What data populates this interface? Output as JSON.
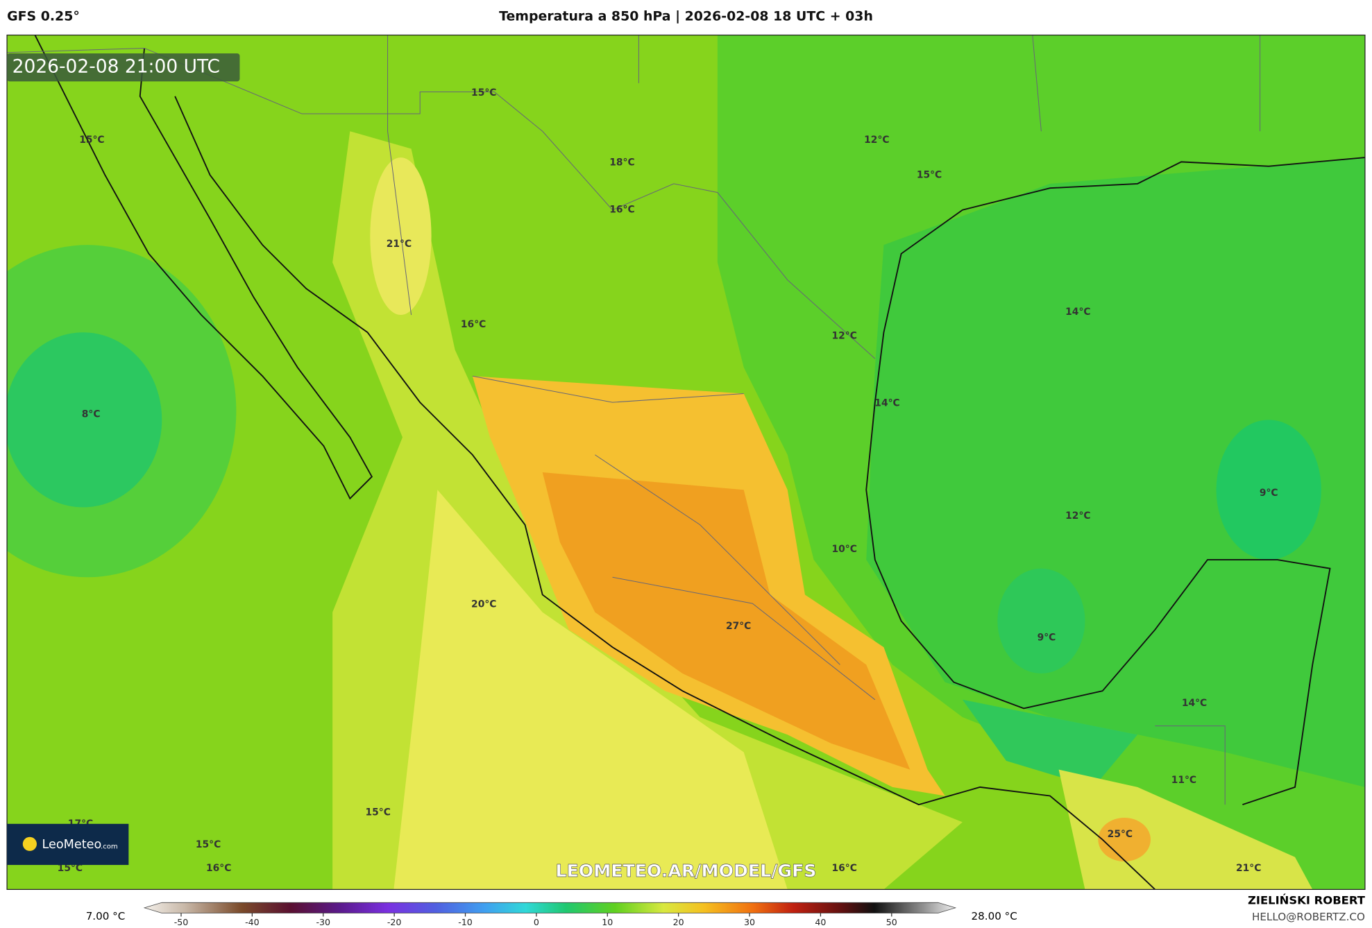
{
  "header": {
    "model": "GFS 0.25°",
    "title": "Temperatura a 850 hPa | 2026-02-08 18 UTC + 03h"
  },
  "map": {
    "timestamp": "2026-02-08 21:00 UTC",
    "watermark": "LEOMETEO.AR/MODEL/GFS",
    "labels": [
      "15°C",
      "15°C",
      "18°C",
      "16°C",
      "12°C",
      "15°C",
      "21°C",
      "16°C",
      "12°C",
      "14°C",
      "8°C",
      "14°C",
      "9°C",
      "12°C",
      "10°C",
      "20°C",
      "27°C",
      "9°C",
      "14°C",
      "11°C",
      "15°C",
      "17°C",
      "15°C",
      "25°C",
      "15°C",
      "16°C",
      "16°C",
      "21°C"
    ],
    "logo": {
      "name": "LeoMeteo",
      "suffix": ".com"
    }
  },
  "colorbar": {
    "min_label": "7.00 °C",
    "max_label": "28.00 °C",
    "ticks": [
      -50,
      -40,
      -30,
      -20,
      -10,
      0,
      10,
      20,
      30,
      40,
      50
    ]
  },
  "footer": {
    "author": "ZIELIŃSKI ROBERT",
    "contact": "HELLO@ROBERTZ.CO"
  }
}
